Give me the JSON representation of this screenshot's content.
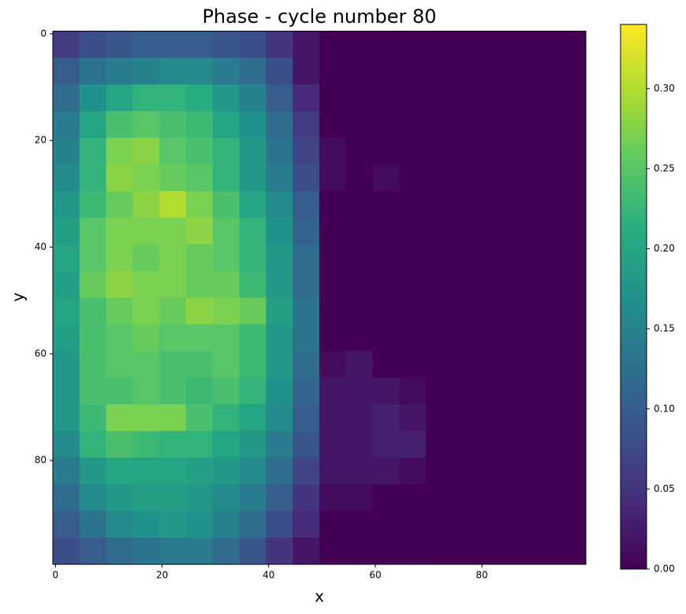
{
  "chart_data": {
    "type": "heatmap",
    "title": "Phase - cycle number 80",
    "x_label": "x",
    "y_label": "y",
    "xlim": [
      -0.5,
      99.5
    ],
    "ylim": [
      99.5,
      -0.5
    ],
    "xticks": [
      0,
      20,
      40,
      60,
      80
    ],
    "yticks": [
      0,
      20,
      40,
      60,
      80
    ],
    "clim": [
      0,
      0.34
    ],
    "cticks": [
      {
        "value": 0,
        "label": "0.00"
      },
      {
        "value": 0.05,
        "label": "0.05"
      },
      {
        "value": 0.1,
        "label": "0.10"
      },
      {
        "value": 0.15,
        "label": "0.15"
      },
      {
        "value": 0.2,
        "label": "0.20"
      },
      {
        "value": 0.25,
        "label": "0.25"
      },
      {
        "value": 0.3,
        "label": "0.30"
      }
    ],
    "colorscale": [
      "#440154",
      "#472d7b",
      "#3b528b",
      "#2c728e",
      "#21918c",
      "#28ae80",
      "#5ec962",
      "#addc30",
      "#fde725"
    ],
    "z": [
      [
        0.06,
        0.08,
        0.09,
        0.1,
        0.1,
        0.1,
        0.09,
        0.08,
        0.05,
        0.02,
        0,
        0,
        0,
        0,
        0,
        0,
        0,
        0,
        0,
        0
      ],
      [
        0.1,
        0.13,
        0.14,
        0.15,
        0.16,
        0.16,
        0.14,
        0.12,
        0.08,
        0.02,
        0,
        0,
        0,
        0,
        0,
        0,
        0,
        0,
        0,
        0
      ],
      [
        0.12,
        0.17,
        0.2,
        0.22,
        0.22,
        0.21,
        0.18,
        0.15,
        0.1,
        0.04,
        0,
        0,
        0,
        0,
        0,
        0,
        0,
        0,
        0,
        0
      ],
      [
        0.14,
        0.2,
        0.24,
        0.25,
        0.24,
        0.23,
        0.2,
        0.17,
        0.12,
        0.06,
        0,
        0,
        0,
        0,
        0,
        0,
        0,
        0,
        0,
        0
      ],
      [
        0.15,
        0.22,
        0.27,
        0.28,
        0.25,
        0.24,
        0.22,
        0.18,
        0.13,
        0.07,
        0.01,
        0,
        0,
        0,
        0,
        0,
        0,
        0,
        0,
        0
      ],
      [
        0.16,
        0.22,
        0.28,
        0.27,
        0.26,
        0.25,
        0.22,
        0.18,
        0.14,
        0.08,
        0.01,
        0,
        0.01,
        0,
        0,
        0,
        0,
        0,
        0,
        0
      ],
      [
        0.18,
        0.23,
        0.26,
        0.28,
        0.3,
        0.27,
        0.24,
        0.2,
        0.16,
        0.1,
        0,
        0,
        0,
        0,
        0,
        0,
        0,
        0,
        0,
        0
      ],
      [
        0.19,
        0.25,
        0.27,
        0.27,
        0.27,
        0.28,
        0.25,
        0.22,
        0.17,
        0.11,
        0,
        0,
        0,
        0,
        0,
        0,
        0,
        0,
        0,
        0
      ],
      [
        0.2,
        0.25,
        0.27,
        0.26,
        0.27,
        0.26,
        0.25,
        0.22,
        0.18,
        0.12,
        0,
        0,
        0,
        0,
        0,
        0,
        0,
        0,
        0,
        0
      ],
      [
        0.19,
        0.26,
        0.28,
        0.27,
        0.27,
        0.26,
        0.26,
        0.23,
        0.18,
        0.12,
        0,
        0,
        0,
        0,
        0,
        0,
        0,
        0,
        0,
        0
      ],
      [
        0.2,
        0.24,
        0.26,
        0.27,
        0.26,
        0.28,
        0.27,
        0.26,
        0.19,
        0.13,
        0,
        0,
        0,
        0,
        0,
        0,
        0,
        0,
        0,
        0
      ],
      [
        0.19,
        0.24,
        0.25,
        0.26,
        0.25,
        0.25,
        0.25,
        0.23,
        0.18,
        0.13,
        0,
        0,
        0,
        0,
        0,
        0,
        0,
        0,
        0,
        0
      ],
      [
        0.18,
        0.24,
        0.25,
        0.25,
        0.24,
        0.24,
        0.25,
        0.23,
        0.18,
        0.12,
        0.01,
        0.02,
        0,
        0,
        0,
        0,
        0,
        0,
        0,
        0
      ],
      [
        0.18,
        0.24,
        0.24,
        0.25,
        0.24,
        0.23,
        0.24,
        0.22,
        0.17,
        0.11,
        0.02,
        0.02,
        0.02,
        0.01,
        0,
        0,
        0,
        0,
        0,
        0
      ],
      [
        0.18,
        0.23,
        0.27,
        0.27,
        0.27,
        0.24,
        0.22,
        0.2,
        0.16,
        0.1,
        0.02,
        0.02,
        0.03,
        0.02,
        0,
        0,
        0,
        0,
        0,
        0
      ],
      [
        0.16,
        0.22,
        0.24,
        0.23,
        0.22,
        0.22,
        0.2,
        0.18,
        0.14,
        0.09,
        0.02,
        0.02,
        0.03,
        0.03,
        0,
        0,
        0,
        0,
        0,
        0
      ],
      [
        0.14,
        0.18,
        0.2,
        0.2,
        0.2,
        0.19,
        0.18,
        0.16,
        0.12,
        0.07,
        0.02,
        0.02,
        0.02,
        0.01,
        0,
        0,
        0,
        0,
        0,
        0
      ],
      [
        0.12,
        0.16,
        0.18,
        0.19,
        0.19,
        0.18,
        0.16,
        0.14,
        0.1,
        0.05,
        0.01,
        0.01,
        0,
        0,
        0,
        0,
        0,
        0,
        0,
        0
      ],
      [
        0.1,
        0.13,
        0.16,
        0.17,
        0.18,
        0.17,
        0.15,
        0.12,
        0.08,
        0.04,
        0,
        0,
        0,
        0,
        0,
        0,
        0,
        0,
        0,
        0
      ],
      [
        0.08,
        0.1,
        0.12,
        0.13,
        0.14,
        0.14,
        0.12,
        0.09,
        0.05,
        0.02,
        0,
        0,
        0,
        0,
        0,
        0,
        0,
        0,
        0,
        0
      ]
    ]
  }
}
